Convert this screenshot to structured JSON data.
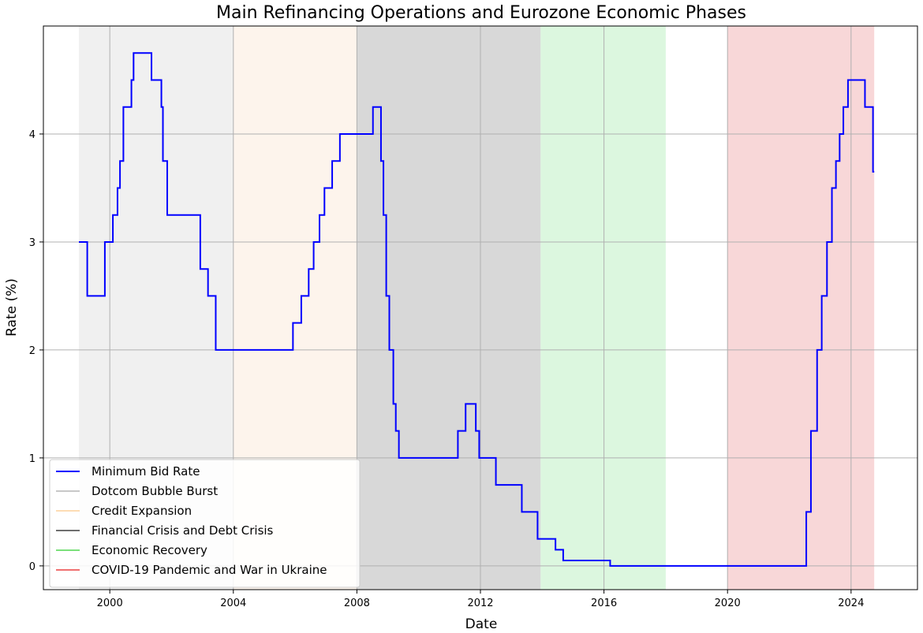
{
  "chart_data": {
    "type": "line",
    "title": "Main Refinancing Operations and Eurozone Economic Phases",
    "xlabel": "Date",
    "ylabel": "Rate (%)",
    "xlim": [
      1997.85,
      2026.15
    ],
    "ylim": [
      -0.22,
      5.0
    ],
    "xticks": [
      2000,
      2004,
      2008,
      2012,
      2016,
      2020,
      2024
    ],
    "yticks": [
      0,
      1,
      2,
      3,
      4
    ],
    "grid": true,
    "legend_position": "lower-left",
    "series": [
      {
        "name": "Minimum Bid Rate",
        "color": "#0000ff",
        "step": "post",
        "points": [
          [
            1999.0,
            3.0
          ],
          [
            1999.27,
            2.5
          ],
          [
            1999.84,
            3.0
          ],
          [
            2000.1,
            3.25
          ],
          [
            2000.25,
            3.5
          ],
          [
            2000.33,
            3.75
          ],
          [
            2000.44,
            4.25
          ],
          [
            2000.7,
            4.5
          ],
          [
            2000.77,
            4.75
          ],
          [
            2001.35,
            4.5
          ],
          [
            2001.67,
            4.25
          ],
          [
            2001.72,
            3.75
          ],
          [
            2001.86,
            3.25
          ],
          [
            2002.93,
            2.75
          ],
          [
            2003.18,
            2.5
          ],
          [
            2003.43,
            2.0
          ],
          [
            2005.93,
            2.25
          ],
          [
            2006.2,
            2.5
          ],
          [
            2006.44,
            2.75
          ],
          [
            2006.6,
            3.0
          ],
          [
            2006.79,
            3.25
          ],
          [
            2006.95,
            3.5
          ],
          [
            2007.2,
            3.75
          ],
          [
            2007.45,
            4.0
          ],
          [
            2008.52,
            4.25
          ],
          [
            2008.78,
            3.75
          ],
          [
            2008.86,
            3.25
          ],
          [
            2008.95,
            2.5
          ],
          [
            2009.05,
            2.0
          ],
          [
            2009.18,
            1.5
          ],
          [
            2009.26,
            1.25
          ],
          [
            2009.36,
            1.0
          ],
          [
            2011.27,
            1.25
          ],
          [
            2011.52,
            1.5
          ],
          [
            2011.85,
            1.25
          ],
          [
            2011.96,
            1.0
          ],
          [
            2012.5,
            0.75
          ],
          [
            2013.34,
            0.5
          ],
          [
            2013.85,
            0.25
          ],
          [
            2014.43,
            0.15
          ],
          [
            2014.68,
            0.05
          ],
          [
            2016.2,
            0.0
          ],
          [
            2022.55,
            0.5
          ],
          [
            2022.7,
            1.25
          ],
          [
            2022.9,
            2.0
          ],
          [
            2023.05,
            2.5
          ],
          [
            2023.22,
            3.0
          ],
          [
            2023.38,
            3.5
          ],
          [
            2023.51,
            3.75
          ],
          [
            2023.63,
            4.0
          ],
          [
            2023.75,
            4.25
          ],
          [
            2023.9,
            4.5
          ],
          [
            2024.45,
            4.25
          ],
          [
            2024.71,
            3.65
          ],
          [
            2024.75,
            3.65
          ]
        ]
      }
    ],
    "phases": [
      {
        "name": "Dotcom Bubble Burst",
        "start": 1999.0,
        "end": 2004.0,
        "fill": "#f0f0f0",
        "legend_color": "#c8c8c8"
      },
      {
        "name": "Credit Expansion",
        "start": 2004.0,
        "end": 2008.0,
        "fill": "#fdf4ec",
        "legend_color": "#fddcb4"
      },
      {
        "name": "Financial Crisis and Debt Crisis",
        "start": 2008.0,
        "end": 2013.95,
        "fill": "#d8d8d8",
        "legend_color": "#6e6e6e"
      },
      {
        "name": "Economic Recovery",
        "start": 2013.95,
        "end": 2018.0,
        "fill": "#dcf7df",
        "legend_color": "#7be07b"
      },
      {
        "name": "COVID-19 Pandemic and War in Ukraine",
        "start": 2020.0,
        "end": 2024.75,
        "fill": "#f8d7d8",
        "legend_color": "#f07070"
      }
    ]
  }
}
